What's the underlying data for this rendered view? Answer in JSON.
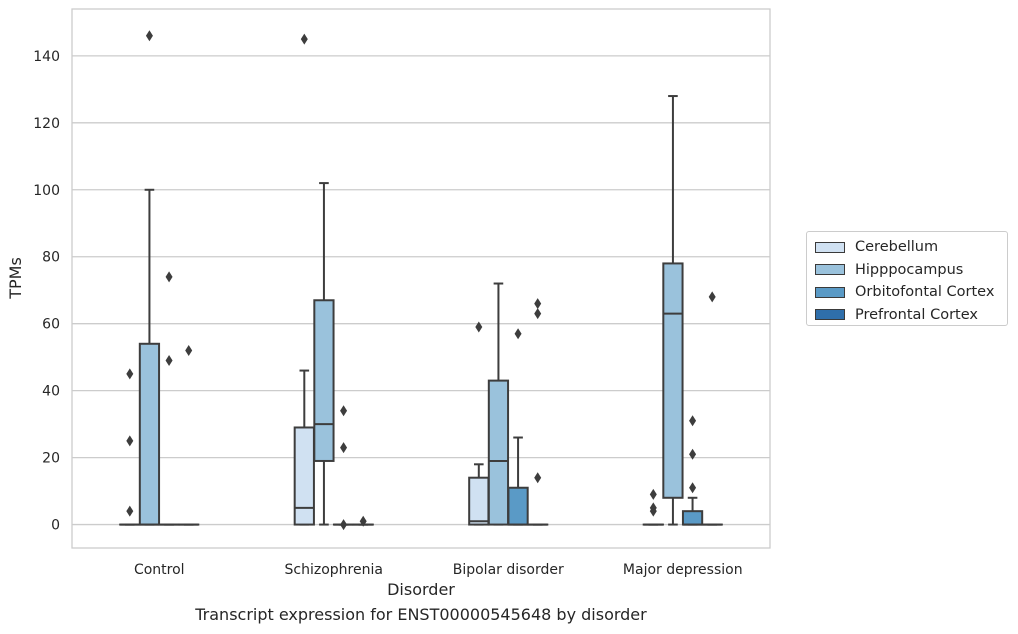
{
  "chart_data": {
    "type": "box",
    "caption": "Transcript expression for ENST00000545648 by disorder",
    "xlabel": "Disorder",
    "ylabel": "TPMs",
    "ylim": [
      -7,
      154
    ],
    "yticks": [
      0,
      20,
      40,
      60,
      80,
      100,
      120,
      140
    ],
    "grid": true,
    "legend_position": "right",
    "categories": [
      "Control",
      "Schizophrenia",
      "Bipolar disorder",
      "Major depression"
    ],
    "series": [
      {
        "name": "Cerebellum",
        "color": "#d0e1f2",
        "boxes": [
          {
            "q1": 0,
            "median": 0,
            "q3": 0,
            "whislo": 0,
            "whishi": 0,
            "fliers": [
              4,
              25,
              45
            ]
          },
          {
            "q1": 0,
            "median": 5,
            "q3": 29,
            "whislo": 0,
            "whishi": 46,
            "fliers": [
              145
            ]
          },
          {
            "q1": 0,
            "median": 1,
            "q3": 14,
            "whislo": 0,
            "whishi": 18,
            "fliers": [
              59
            ]
          },
          {
            "q1": 0,
            "median": 0,
            "q3": 0,
            "whislo": 0,
            "whishi": 0,
            "fliers": [
              4,
              5,
              9
            ]
          }
        ]
      },
      {
        "name": "Hipppocampus",
        "color": "#9ac2dc",
        "boxes": [
          {
            "q1": 0,
            "median": 0,
            "q3": 54,
            "whislo": 0,
            "whishi": 100,
            "fliers": [
              146
            ]
          },
          {
            "q1": 19,
            "median": 30,
            "q3": 67,
            "whislo": 0,
            "whishi": 102,
            "fliers": []
          },
          {
            "q1": 0,
            "median": 19,
            "q3": 43,
            "whislo": 0,
            "whishi": 72,
            "fliers": []
          },
          {
            "q1": 8,
            "median": 63,
            "q3": 78,
            "whislo": 0,
            "whishi": 128,
            "fliers": []
          }
        ]
      },
      {
        "name": "Orbitofontal Cortex",
        "color": "#5a9ac6",
        "boxes": [
          {
            "q1": 0,
            "median": 0,
            "q3": 0,
            "whislo": 0,
            "whishi": 0,
            "fliers": [
              49,
              74
            ]
          },
          {
            "q1": 0,
            "median": 0,
            "q3": 0,
            "whislo": 0,
            "whishi": 0,
            "fliers": [
              0,
              23,
              34
            ]
          },
          {
            "q1": 0,
            "median": 0,
            "q3": 11,
            "whislo": 0,
            "whishi": 26,
            "fliers": [
              57
            ]
          },
          {
            "q1": 0,
            "median": 0,
            "q3": 4,
            "whislo": 0,
            "whishi": 8,
            "fliers": [
              11,
              21,
              31
            ]
          }
        ]
      },
      {
        "name": "Prefrontal Cortex",
        "color": "#2f6fab",
        "boxes": [
          {
            "q1": 0,
            "median": 0,
            "q3": 0,
            "whislo": 0,
            "whishi": 0,
            "fliers": [
              52
            ]
          },
          {
            "q1": 0,
            "median": 0,
            "q3": 0,
            "whislo": 0,
            "whishi": 0,
            "fliers": [
              1
            ]
          },
          {
            "q1": 0,
            "median": 0,
            "q3": 0,
            "whislo": 0,
            "whishi": 0,
            "fliers": [
              14,
              63,
              66
            ]
          },
          {
            "q1": 0,
            "median": 0,
            "q3": 0,
            "whislo": 0,
            "whishi": 0,
            "fliers": [
              68
            ]
          }
        ]
      }
    ]
  }
}
